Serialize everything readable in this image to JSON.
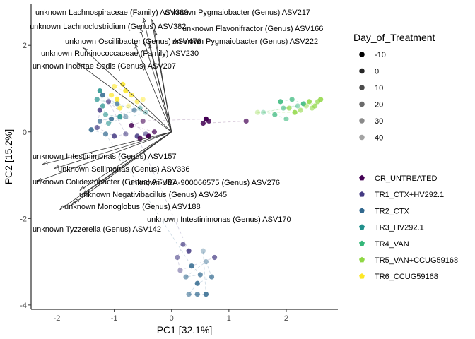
{
  "chart_data": {
    "type": "scatter",
    "subtype": "pca-biplot",
    "xlabel": "PC1   [32.1%]",
    "ylabel": "PC2   [15.2%]",
    "xlim": [
      -2.45,
      2.9
    ],
    "ylim": [
      -4.1,
      2.95
    ],
    "x_ticks": [
      -2,
      -1,
      0,
      1,
      2
    ],
    "y_ticks": [
      -4,
      -2,
      0,
      2
    ],
    "grid": false,
    "legend_placement": "right",
    "legend_alpha": {
      "title": "Day_of_Treatment",
      "entries": [
        {
          "label": "-10",
          "alpha": 1.0
        },
        {
          "label": "0",
          "alpha": 0.85
        },
        {
          "label": "10",
          "alpha": 0.7
        },
        {
          "label": "20",
          "alpha": 0.58
        },
        {
          "label": "30",
          "alpha": 0.46
        },
        {
          "label": "40",
          "alpha": 0.36
        }
      ]
    },
    "legend_group": {
      "entries": [
        {
          "label": "CR_UNTREATED",
          "color": "#440154"
        },
        {
          "label": "TR1_CTX+HV292.1",
          "color": "#443A83"
        },
        {
          "label": "TR2_CTX",
          "color": "#31688E"
        },
        {
          "label": "TR3_HV292.1",
          "color": "#21908C"
        },
        {
          "label": "TR4_VAN",
          "color": "#35B779"
        },
        {
          "label": "TR5_VAN+CCUG59168",
          "color": "#8FD744"
        },
        {
          "label": "TR6_CCUG59168",
          "color": "#FDE725"
        }
      ]
    },
    "loadings": [
      {
        "label": "unknown Lachnospiraceae (Family) ASV389",
        "x": -0.5,
        "y": 2.65
      },
      {
        "label": "unknown Pygmaiobacter (Genus) ASV217",
        "x": -0.35,
        "y": 2.6
      },
      {
        "label": "unknown Lachnoclostridium (Genus) ASV382",
        "x": -0.55,
        "y": 2.4
      },
      {
        "label": "unknown Flavonifractor (Genus) ASV166",
        "x": -0.3,
        "y": 2.35
      },
      {
        "label": "unknown Oscillibacter (Genus) ASV476",
        "x": -0.65,
        "y": 2.05
      },
      {
        "label": "unknown Pygmaiobacter (Genus) ASV222",
        "x": -0.4,
        "y": 2.05
      },
      {
        "label": "unknown Ruminococcaceae (Family) ASV230",
        "x": -1.55,
        "y": 1.95
      },
      {
        "label": "unknown Incertae Sedis (Genus) ASV207",
        "x": -1.65,
        "y": 1.6
      },
      {
        "label": "unknown Intestinimonas (Genus) ASV157",
        "x": -2.25,
        "y": -0.75
      },
      {
        "label": "unknown Sellimonas (Genus) ASV336",
        "x": -2.05,
        "y": -0.85
      },
      {
        "label": "unknown Colidextribacter (Genus) ASV67",
        "x": -2.35,
        "y": -1.15
      },
      {
        "label": "unknown UBA-900066575 (Genus) ASV276",
        "x": -1.6,
        "y": -1.35
      },
      {
        "label": "unknown Negativibacillus (Genus) ASV245",
        "x": -1.55,
        "y": -1.45
      },
      {
        "label": "unknown Monoglobus (Genus) ASV188",
        "x": -1.75,
        "y": -1.7
      },
      {
        "label": "unknown Intestinimonas (Genus) ASV170",
        "x": -1.7,
        "y": -1.65
      },
      {
        "label": "unknown Tyzzerella (Genus) ASV142",
        "x": -1.95,
        "y": -1.8
      }
    ],
    "points": [
      {
        "x": -0.95,
        "y": 0.75,
        "group": 6,
        "day": 0
      },
      {
        "x": -0.8,
        "y": 0.95,
        "group": 6,
        "day": 0
      },
      {
        "x": -0.7,
        "y": 0.85,
        "group": 6,
        "day": 10
      },
      {
        "x": -1.05,
        "y": 0.85,
        "group": 6,
        "day": 10
      },
      {
        "x": -0.6,
        "y": 0.7,
        "group": 6,
        "day": 20
      },
      {
        "x": -0.85,
        "y": 1.1,
        "group": 6,
        "day": 0
      },
      {
        "x": -1.0,
        "y": 1.05,
        "group": 6,
        "day": 20
      },
      {
        "x": -0.5,
        "y": 0.75,
        "group": 6,
        "day": 30
      },
      {
        "x": -0.9,
        "y": 0.55,
        "group": 6,
        "day": 10
      },
      {
        "x": -0.75,
        "y": 0.6,
        "group": 6,
        "day": 40
      },
      {
        "x": -1.25,
        "y": 0.95,
        "group": 3,
        "day": 0
      },
      {
        "x": -1.2,
        "y": 0.6,
        "group": 3,
        "day": 10
      },
      {
        "x": -1.15,
        "y": 0.4,
        "group": 3,
        "day": 20
      },
      {
        "x": -0.9,
        "y": 0.35,
        "group": 3,
        "day": 0
      },
      {
        "x": -0.55,
        "y": 0.55,
        "group": 3,
        "day": 30
      },
      {
        "x": -1.3,
        "y": 0.75,
        "group": 3,
        "day": 10
      },
      {
        "x": -0.45,
        "y": 0.45,
        "group": 3,
        "day": 40
      },
      {
        "x": -1.1,
        "y": 0.2,
        "group": 3,
        "day": 20
      },
      {
        "x": -1.2,
        "y": 0.85,
        "group": 2,
        "day": 0
      },
      {
        "x": -0.95,
        "y": 0.65,
        "group": 2,
        "day": 10
      },
      {
        "x": -0.65,
        "y": 0.5,
        "group": 2,
        "day": 20
      },
      {
        "x": -1.25,
        "y": 0.25,
        "group": 2,
        "day": 10
      },
      {
        "x": -1.05,
        "y": 0.3,
        "group": 2,
        "day": 0
      },
      {
        "x": -0.8,
        "y": 0.35,
        "group": 2,
        "day": 30
      },
      {
        "x": -1.4,
        "y": 0.05,
        "group": 2,
        "day": 0
      },
      {
        "x": -1.15,
        "y": -0.05,
        "group": 2,
        "day": 10
      },
      {
        "x": -1.25,
        "y": 0.5,
        "group": 1,
        "day": 0
      },
      {
        "x": -1.3,
        "y": 0.1,
        "group": 1,
        "day": 10
      },
      {
        "x": -1.0,
        "y": -0.1,
        "group": 1,
        "day": 0
      },
      {
        "x": -0.8,
        "y": -0.05,
        "group": 1,
        "day": 20
      },
      {
        "x": -1.1,
        "y": 0.7,
        "group": 1,
        "day": 10
      },
      {
        "x": -0.45,
        "y": -0.05,
        "group": 1,
        "day": 20
      },
      {
        "x": -0.6,
        "y": -0.1,
        "group": 1,
        "day": 0
      },
      {
        "x": -0.4,
        "y": -0.1,
        "group": 0,
        "day": -10
      },
      {
        "x": -0.55,
        "y": -0.15,
        "group": 0,
        "day": 0
      },
      {
        "x": -0.3,
        "y": 0.0,
        "group": 0,
        "day": 10
      },
      {
        "x": -0.7,
        "y": 0.15,
        "group": 0,
        "day": 0
      },
      {
        "x": -0.5,
        "y": 0.25,
        "group": 0,
        "day": 20
      },
      {
        "x": 0.6,
        "y": 0.3,
        "group": 0,
        "day": -10
      },
      {
        "x": 0.65,
        "y": 0.25,
        "group": 0,
        "day": 0
      },
      {
        "x": 0.55,
        "y": 0.2,
        "group": 0,
        "day": 0
      },
      {
        "x": 1.3,
        "y": 0.25,
        "group": 0,
        "day": 10
      },
      {
        "x": 1.9,
        "y": 0.7,
        "group": 4,
        "day": 0
      },
      {
        "x": 2.1,
        "y": 0.75,
        "group": 4,
        "day": 10
      },
      {
        "x": 2.3,
        "y": 0.65,
        "group": 4,
        "day": 0
      },
      {
        "x": 1.95,
        "y": 0.55,
        "group": 4,
        "day": 20
      },
      {
        "x": 2.2,
        "y": 0.6,
        "group": 4,
        "day": 30
      },
      {
        "x": 1.6,
        "y": 0.45,
        "group": 4,
        "day": 40
      },
      {
        "x": 1.8,
        "y": 0.4,
        "group": 4,
        "day": 10
      },
      {
        "x": 2.0,
        "y": 0.3,
        "group": 4,
        "day": 20
      },
      {
        "x": 2.4,
        "y": 0.7,
        "group": 5,
        "day": 0
      },
      {
        "x": 2.5,
        "y": 0.6,
        "group": 5,
        "day": 10
      },
      {
        "x": 2.6,
        "y": 0.75,
        "group": 5,
        "day": 0
      },
      {
        "x": 2.45,
        "y": 0.55,
        "group": 5,
        "day": 20
      },
      {
        "x": 2.55,
        "y": 0.7,
        "group": 5,
        "day": 10
      },
      {
        "x": 2.35,
        "y": 0.6,
        "group": 5,
        "day": 30
      },
      {
        "x": 2.25,
        "y": 0.5,
        "group": 5,
        "day": 20
      },
      {
        "x": 2.15,
        "y": 0.45,
        "group": 5,
        "day": 0
      },
      {
        "x": 1.5,
        "y": 0.45,
        "group": 5,
        "day": 40
      },
      {
        "x": 2.05,
        "y": 0.55,
        "group": 5,
        "day": 10
      },
      {
        "x": 0.3,
        "y": -2.75,
        "group": 1,
        "day": 0
      },
      {
        "x": 0.2,
        "y": -2.6,
        "group": 1,
        "day": 10
      },
      {
        "x": 0.1,
        "y": -2.9,
        "group": 1,
        "day": 20
      },
      {
        "x": 0.35,
        "y": -3.1,
        "group": 2,
        "day": 0
      },
      {
        "x": 0.5,
        "y": -3.3,
        "group": 2,
        "day": 10
      },
      {
        "x": 0.25,
        "y": -3.35,
        "group": 2,
        "day": 20
      },
      {
        "x": 0.6,
        "y": -3.0,
        "group": 2,
        "day": 30
      },
      {
        "x": 0.7,
        "y": -3.35,
        "group": 2,
        "day": 10
      },
      {
        "x": 0.45,
        "y": -3.5,
        "group": 2,
        "day": 0
      },
      {
        "x": 0.3,
        "y": -3.75,
        "group": 2,
        "day": 20
      },
      {
        "x": 0.45,
        "y": -3.75,
        "group": 2,
        "day": 10
      },
      {
        "x": 0.6,
        "y": -3.75,
        "group": 2,
        "day": 0
      },
      {
        "x": 0.15,
        "y": -3.2,
        "group": 1,
        "day": 30
      },
      {
        "x": 0.55,
        "y": -2.75,
        "group": 2,
        "day": 40
      },
      {
        "x": 0.75,
        "y": -2.9,
        "group": 1,
        "day": 10
      }
    ]
  }
}
